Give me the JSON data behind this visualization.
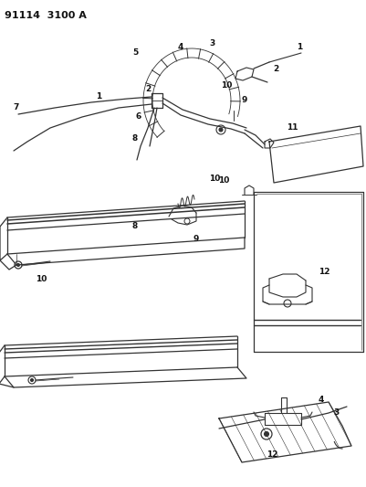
{
  "title": "91114  3100 A",
  "background_color": "#ffffff",
  "line_color": "#333333",
  "text_color": "#111111",
  "figsize": [
    4.01,
    5.33
  ],
  "dpi": 100
}
